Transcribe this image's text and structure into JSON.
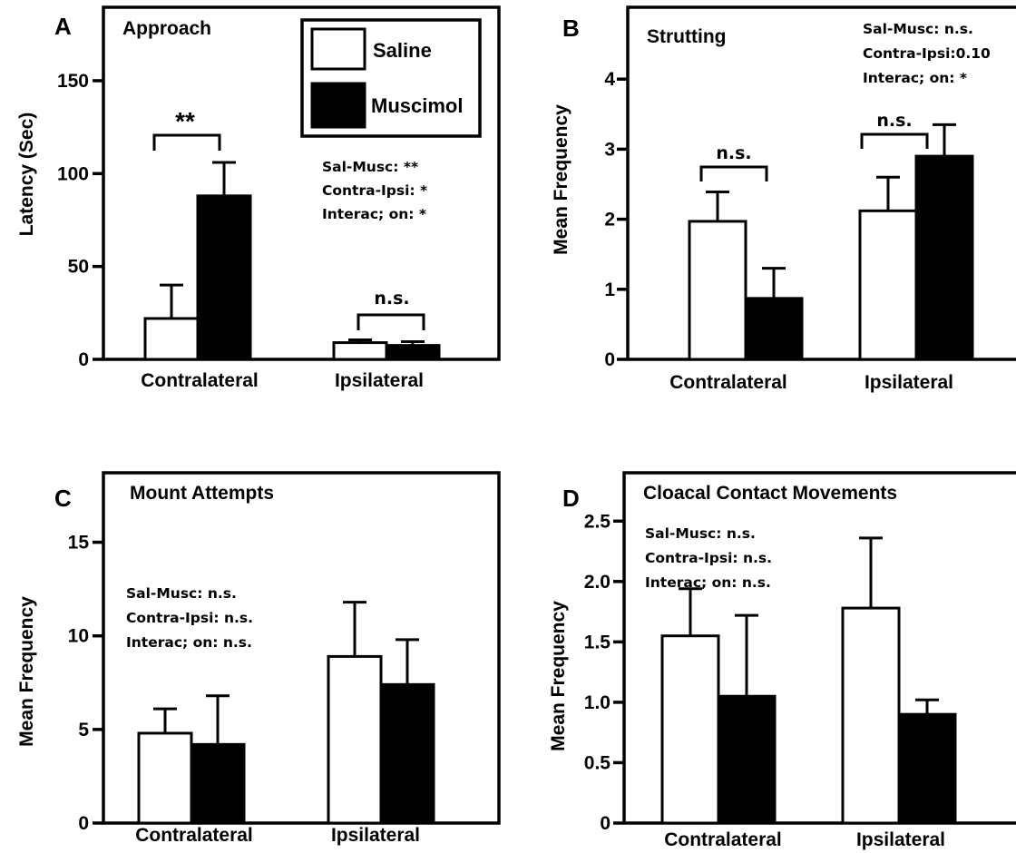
{
  "colors": {
    "saline": "#ffffff",
    "muscimol": "#000000",
    "stroke": "#000000"
  },
  "legend": {
    "saline": "Saline",
    "muscimol": "Muscimol"
  },
  "chart_data": [
    {
      "type": "bar",
      "panel": "A",
      "title": "Approach",
      "ylabel": "Latency (Sec)",
      "xlabel": "",
      "ylim": [
        0,
        170
      ],
      "yticks": [
        0,
        50,
        100,
        150
      ],
      "categories": [
        "Contralateral",
        "Ipsilateral"
      ],
      "series": [
        {
          "name": "Saline",
          "values": [
            22,
            9
          ],
          "errors": [
            18,
            1.5
          ]
        },
        {
          "name": "Muscimol",
          "values": [
            88,
            7.5
          ],
          "errors": [
            18,
            2
          ]
        }
      ],
      "significance": [
        "**",
        "n.s."
      ],
      "stats": [
        "Sal-Musc: **",
        "Contra-Ipsi: *",
        "Interac; on: *"
      ],
      "grid": false,
      "legend_position": "top-right"
    },
    {
      "type": "bar",
      "panel": "B",
      "title": "Strutting",
      "ylabel": "Mean Frequency",
      "xlabel": "",
      "ylim": [
        0,
        5
      ],
      "yticks": [
        0,
        1,
        2,
        3,
        4
      ],
      "categories": [
        "Contralateral",
        "Ipsilateral"
      ],
      "series": [
        {
          "name": "Saline",
          "values": [
            1.97,
            2.12
          ],
          "errors": [
            0.42,
            0.48
          ]
        },
        {
          "name": "Muscimol",
          "values": [
            0.87,
            2.9
          ],
          "errors": [
            0.43,
            0.45
          ]
        }
      ],
      "significance": [
        "n.s.",
        "n.s."
      ],
      "stats": [
        "Sal-Musc: n.s.",
        "Contra-Ipsi:0.10",
        "Interac; on: *"
      ],
      "grid": false
    },
    {
      "type": "bar",
      "panel": "C",
      "title": "Mount Attempts",
      "ylabel": "Mean Frequency",
      "xlabel": "",
      "ylim": [
        0,
        17.5
      ],
      "yticks": [
        0,
        5,
        10,
        15
      ],
      "categories": [
        "Contralateral",
        "Ipsilateral"
      ],
      "series": [
        {
          "name": "Saline",
          "values": [
            4.8,
            8.9
          ],
          "errors": [
            1.3,
            2.9
          ]
        },
        {
          "name": "Muscimol",
          "values": [
            4.2,
            7.4
          ],
          "errors": [
            2.6,
            2.4
          ]
        }
      ],
      "significance": [],
      "stats": [
        "Sal-Musc: n.s.",
        "Contra-Ipsi: n.s.",
        "Interac; on: n.s."
      ],
      "grid": false
    },
    {
      "type": "bar",
      "panel": "D",
      "title": "Cloacal Contact Movements",
      "ylabel": "Mean Frequency",
      "xlabel": "",
      "ylim": [
        0,
        2.75
      ],
      "yticks": [
        0,
        0.5,
        1.0,
        1.5,
        2.0,
        2.5
      ],
      "ytick_labels": [
        "0",
        "0.5",
        "1.0",
        "1.5",
        "2.0",
        "2.5"
      ],
      "categories": [
        "Contralateral",
        "Ipsilateral"
      ],
      "series": [
        {
          "name": "Saline",
          "values": [
            1.55,
            1.78
          ],
          "errors": [
            0.39,
            0.58
          ]
        },
        {
          "name": "Muscimol",
          "values": [
            1.05,
            0.9
          ],
          "errors": [
            0.67,
            0.12
          ]
        }
      ],
      "significance": [],
      "stats": [
        "Sal-Musc: n.s.",
        "Contra-Ipsi: n.s.",
        "Interac; on: n.s."
      ],
      "grid": false
    }
  ]
}
